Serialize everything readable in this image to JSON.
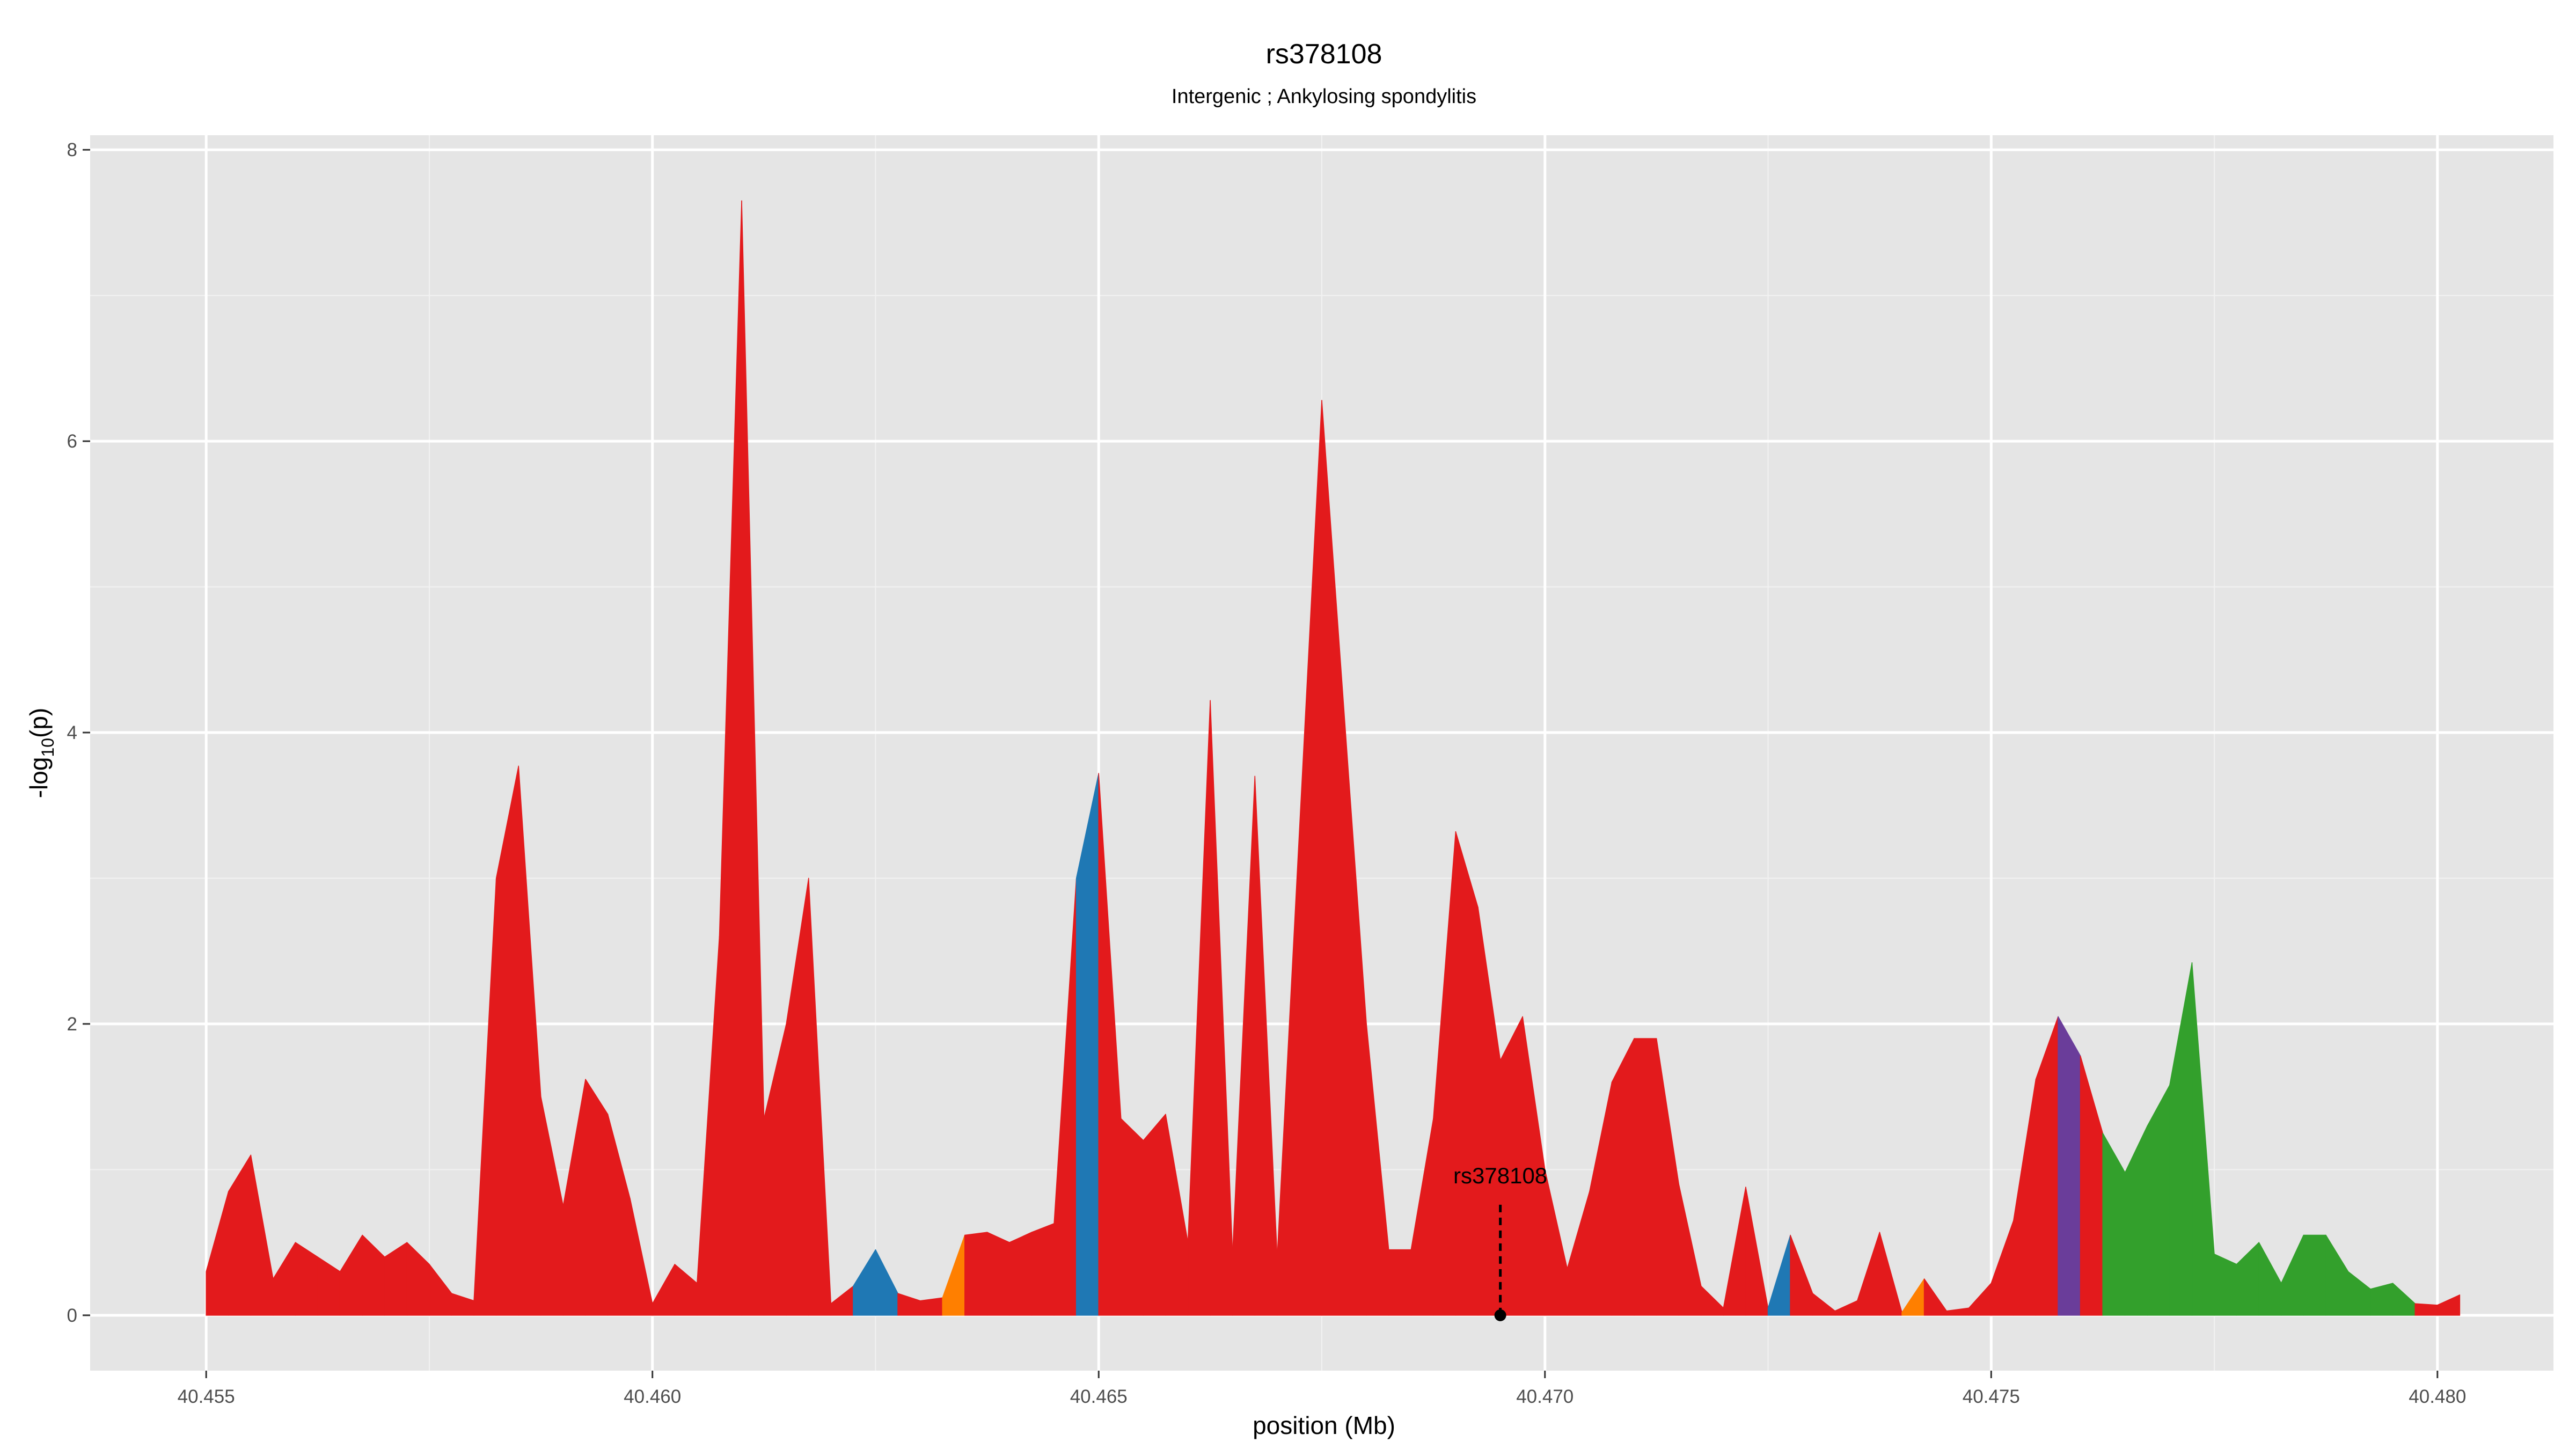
{
  "chart_data": {
    "type": "area",
    "title": "rs378108",
    "subtitle": "Intergenic ; Ankylosing spondylitis",
    "xlabel": "position (Mb)",
    "ylabel_main": "-log",
    "ylabel_sub": "10",
    "ylabel_tail": "(p)",
    "xlim": [
      40.4537,
      40.4813
    ],
    "ylim": [
      -0.38,
      8.1
    ],
    "x_ticks": [
      40.455,
      40.46,
      40.465,
      40.47,
      40.475,
      40.48
    ],
    "x_tick_labels": [
      "40.455",
      "40.460",
      "40.465",
      "40.470",
      "40.475",
      "40.480"
    ],
    "y_ticks": [
      0,
      2,
      4,
      6,
      8
    ],
    "y_tick_labels": [
      "0",
      "2",
      "4",
      "6",
      "8"
    ],
    "grid": true,
    "colors": {
      "red": "#e31a1c",
      "blue": "#1f78b4",
      "orange": "#ff7f00",
      "purple": "#6a3d9a",
      "green": "#33a02c",
      "panel": "#e5e5e5",
      "grid_major": "#ffffff",
      "grid_minor": "#f2f2f2"
    },
    "points": [
      {
        "x": 40.455,
        "y": 0.3,
        "c": "red"
      },
      {
        "x": 40.45525,
        "y": 0.85,
        "c": "red"
      },
      {
        "x": 40.4555,
        "y": 1.1,
        "c": "red"
      },
      {
        "x": 40.45575,
        "y": 0.25,
        "c": "red"
      },
      {
        "x": 40.456,
        "y": 0.5,
        "c": "red"
      },
      {
        "x": 40.45625,
        "y": 0.4,
        "c": "red"
      },
      {
        "x": 40.4565,
        "y": 0.3,
        "c": "red"
      },
      {
        "x": 40.45675,
        "y": 0.55,
        "c": "red"
      },
      {
        "x": 40.457,
        "y": 0.4,
        "c": "red"
      },
      {
        "x": 40.45725,
        "y": 0.5,
        "c": "red"
      },
      {
        "x": 40.4575,
        "y": 0.35,
        "c": "red"
      },
      {
        "x": 40.45775,
        "y": 0.15,
        "c": "red"
      },
      {
        "x": 40.458,
        "y": 0.1,
        "c": "red"
      },
      {
        "x": 40.45825,
        "y": 3.0,
        "c": "red"
      },
      {
        "x": 40.4585,
        "y": 3.77,
        "c": "red"
      },
      {
        "x": 40.45875,
        "y": 1.5,
        "c": "red"
      },
      {
        "x": 40.459,
        "y": 0.75,
        "c": "red"
      },
      {
        "x": 40.45925,
        "y": 1.62,
        "c": "red"
      },
      {
        "x": 40.4595,
        "y": 1.38,
        "c": "red"
      },
      {
        "x": 40.45975,
        "y": 0.8,
        "c": "red"
      },
      {
        "x": 40.46,
        "y": 0.08,
        "c": "red"
      },
      {
        "x": 40.46025,
        "y": 0.35,
        "c": "red"
      },
      {
        "x": 40.4605,
        "y": 0.22,
        "c": "red"
      },
      {
        "x": 40.46075,
        "y": 2.6,
        "c": "red"
      },
      {
        "x": 40.461,
        "y": 7.65,
        "c": "red"
      },
      {
        "x": 40.46125,
        "y": 1.35,
        "c": "red"
      },
      {
        "x": 40.4615,
        "y": 2.0,
        "c": "red"
      },
      {
        "x": 40.46175,
        "y": 3.0,
        "c": "red"
      },
      {
        "x": 40.462,
        "y": 0.08,
        "c": "red"
      },
      {
        "x": 40.46225,
        "y": 0.2,
        "c": "blue"
      },
      {
        "x": 40.4625,
        "y": 0.45,
        "c": "blue"
      },
      {
        "x": 40.46275,
        "y": 0.15,
        "c": "red"
      },
      {
        "x": 40.463,
        "y": 0.1,
        "c": "red"
      },
      {
        "x": 40.46325,
        "y": 0.12,
        "c": "orange"
      },
      {
        "x": 40.4635,
        "y": 0.55,
        "c": "red"
      },
      {
        "x": 40.46375,
        "y": 0.57,
        "c": "red"
      },
      {
        "x": 40.464,
        "y": 0.5,
        "c": "red"
      },
      {
        "x": 40.46425,
        "y": 0.57,
        "c": "red"
      },
      {
        "x": 40.4645,
        "y": 0.63,
        "c": "red"
      },
      {
        "x": 40.46475,
        "y": 3.0,
        "c": "blue"
      },
      {
        "x": 40.465,
        "y": 3.72,
        "c": "red"
      },
      {
        "x": 40.46525,
        "y": 1.35,
        "c": "red"
      },
      {
        "x": 40.4655,
        "y": 1.2,
        "c": "red"
      },
      {
        "x": 40.46575,
        "y": 1.38,
        "c": "red"
      },
      {
        "x": 40.466,
        "y": 0.5,
        "c": "red"
      },
      {
        "x": 40.46625,
        "y": 4.22,
        "c": "red"
      },
      {
        "x": 40.4665,
        "y": 0.42,
        "c": "red"
      },
      {
        "x": 40.46675,
        "y": 3.7,
        "c": "red"
      },
      {
        "x": 40.467,
        "y": 0.4,
        "c": "red"
      },
      {
        "x": 40.4675,
        "y": 6.28,
        "c": "red"
      },
      {
        "x": 40.468,
        "y": 2.0,
        "c": "red"
      },
      {
        "x": 40.46825,
        "y": 0.45,
        "c": "red"
      },
      {
        "x": 40.4685,
        "y": 0.45,
        "c": "red"
      },
      {
        "x": 40.46875,
        "y": 1.35,
        "c": "red"
      },
      {
        "x": 40.469,
        "y": 3.32,
        "c": "red"
      },
      {
        "x": 40.46925,
        "y": 2.8,
        "c": "red"
      },
      {
        "x": 40.4695,
        "y": 1.75,
        "c": "red"
      },
      {
        "x": 40.46975,
        "y": 2.05,
        "c": "red"
      },
      {
        "x": 40.47,
        "y": 1.0,
        "c": "red"
      },
      {
        "x": 40.47025,
        "y": 0.32,
        "c": "red"
      },
      {
        "x": 40.4705,
        "y": 0.85,
        "c": "red"
      },
      {
        "x": 40.47075,
        "y": 1.6,
        "c": "red"
      },
      {
        "x": 40.471,
        "y": 1.9,
        "c": "red"
      },
      {
        "x": 40.47125,
        "y": 1.9,
        "c": "red"
      },
      {
        "x": 40.4715,
        "y": 0.9,
        "c": "red"
      },
      {
        "x": 40.47175,
        "y": 0.2,
        "c": "red"
      },
      {
        "x": 40.472,
        "y": 0.05,
        "c": "red"
      },
      {
        "x": 40.47225,
        "y": 0.88,
        "c": "red"
      },
      {
        "x": 40.4725,
        "y": 0.05,
        "c": "blue"
      },
      {
        "x": 40.47275,
        "y": 0.55,
        "c": "red"
      },
      {
        "x": 40.473,
        "y": 0.15,
        "c": "red"
      },
      {
        "x": 40.47325,
        "y": 0.03,
        "c": "red"
      },
      {
        "x": 40.4735,
        "y": 0.1,
        "c": "red"
      },
      {
        "x": 40.47375,
        "y": 0.57,
        "c": "red"
      },
      {
        "x": 40.474,
        "y": 0.02,
        "c": "orange"
      },
      {
        "x": 40.47425,
        "y": 0.25,
        "c": "red"
      },
      {
        "x": 40.4745,
        "y": 0.03,
        "c": "red"
      },
      {
        "x": 40.47475,
        "y": 0.05,
        "c": "red"
      },
      {
        "x": 40.475,
        "y": 0.22,
        "c": "red"
      },
      {
        "x": 40.47525,
        "y": 0.65,
        "c": "red"
      },
      {
        "x": 40.4755,
        "y": 1.62,
        "c": "red"
      },
      {
        "x": 40.47575,
        "y": 2.05,
        "c": "purple"
      },
      {
        "x": 40.476,
        "y": 1.78,
        "c": "red"
      },
      {
        "x": 40.47625,
        "y": 1.25,
        "c": "green"
      },
      {
        "x": 40.4765,
        "y": 0.98,
        "c": "green"
      },
      {
        "x": 40.47675,
        "y": 1.3,
        "c": "green"
      },
      {
        "x": 40.477,
        "y": 1.58,
        "c": "green"
      },
      {
        "x": 40.47725,
        "y": 2.42,
        "c": "green"
      },
      {
        "x": 40.4775,
        "y": 0.42,
        "c": "green"
      },
      {
        "x": 40.47775,
        "y": 0.35,
        "c": "green"
      },
      {
        "x": 40.478,
        "y": 0.5,
        "c": "green"
      },
      {
        "x": 40.47825,
        "y": 0.22,
        "c": "green"
      },
      {
        "x": 40.4785,
        "y": 0.55,
        "c": "green"
      },
      {
        "x": 40.47875,
        "y": 0.55,
        "c": "green"
      },
      {
        "x": 40.479,
        "y": 0.3,
        "c": "green"
      },
      {
        "x": 40.47925,
        "y": 0.18,
        "c": "green"
      },
      {
        "x": 40.4795,
        "y": 0.22,
        "c": "green"
      },
      {
        "x": 40.47975,
        "y": 0.08,
        "c": "red"
      },
      {
        "x": 40.48,
        "y": 0.07,
        "c": "red"
      },
      {
        "x": 40.48025,
        "y": 0.14,
        "c": "red"
      }
    ],
    "annotation": {
      "label": "rs378108",
      "x": 40.4695,
      "y": 0,
      "line_top": 0.78
    }
  }
}
